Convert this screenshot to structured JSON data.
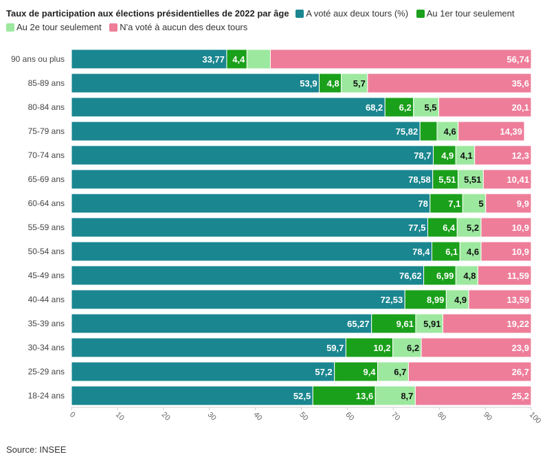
{
  "chart_data": {
    "type": "bar",
    "orientation": "horizontal",
    "stacked": true,
    "title": "Taux de participation aux élections présidentielles de 2022 par âge",
    "categories": [
      "90 ans ou plus",
      "85-89 ans",
      "80-84 ans",
      "75-79 ans",
      "70-74 ans",
      "65-69 ans",
      "60-64 ans",
      "55-59 ans",
      "50-54 ans",
      "45-49 ans",
      "40-44 ans",
      "35-39 ans",
      "30-34 ans",
      "25-29 ans",
      "18-24 ans"
    ],
    "series": [
      {
        "name": "A voté aux deux tours (%)",
        "color": "#1a8690",
        "label_color": "#ffffff",
        "values": [
          33.77,
          53.9,
          68.2,
          75.82,
          78.7,
          78.58,
          78,
          77.5,
          78.4,
          76.62,
          72.53,
          65.27,
          59.7,
          57.2,
          52.5
        ],
        "labels": [
          "33,77",
          "53,9",
          "68,2",
          "75,82",
          "78,7",
          "78,58",
          "78",
          "77,5",
          "78,4",
          "76,62",
          "72,53",
          "65,27",
          "59,7",
          "57,2",
          "52,5"
        ]
      },
      {
        "name": "Au 1er tour seulement",
        "color": "#1ba01b",
        "label_color": "#ffffff",
        "values": [
          4.4,
          4.8,
          6.2,
          3.7,
          4.9,
          5.51,
          7.1,
          6.4,
          6.1,
          6.99,
          8.99,
          9.61,
          10.2,
          9.4,
          13.6
        ],
        "labels": [
          "4,4",
          "4,8",
          "6,2",
          "",
          "4,9",
          "5,51",
          "7,1",
          "6,4",
          "6,1",
          "6,99",
          "8,99",
          "9,61",
          "10,2",
          "9,4",
          "13,6"
        ]
      },
      {
        "name": "Au 2e tour seulement",
        "color": "#9de89f",
        "label_color": "#111111",
        "values": [
          5.1,
          5.7,
          5.5,
          4.6,
          4.1,
          5.51,
          5,
          5.2,
          4.6,
          4.8,
          4.9,
          5.91,
          6.2,
          6.7,
          8.7
        ],
        "labels": [
          "",
          "5,7",
          "5,5",
          "4,6",
          "4,1",
          "5,51",
          "5",
          "5,2",
          "4,6",
          "4,8",
          "4,9",
          "5,91",
          "6,2",
          "6,7",
          "8,7"
        ]
      },
      {
        "name": "N'a voté à aucun des deux tours",
        "color": "#ee7d99",
        "label_color": "#ffffff",
        "values": [
          56.74,
          35.6,
          20.1,
          14.39,
          12.3,
          10.41,
          9.9,
          10.9,
          10.9,
          11.59,
          13.59,
          19.22,
          23.9,
          26.7,
          25.2
        ],
        "labels": [
          "56,74",
          "35,6",
          "20,1",
          "14,39",
          "12,3",
          "10,41",
          "9,9",
          "10,9",
          "10,9",
          "11,59",
          "13,59",
          "19,22",
          "23,9",
          "26,7",
          "25,2"
        ]
      }
    ],
    "xlim": [
      0,
      100
    ],
    "xticks": [
      "0",
      "10",
      "20",
      "30",
      "40",
      "50",
      "60",
      "70",
      "80",
      "90",
      "100"
    ],
    "grid": false,
    "legend": "top"
  },
  "source": "Source: INSEE"
}
